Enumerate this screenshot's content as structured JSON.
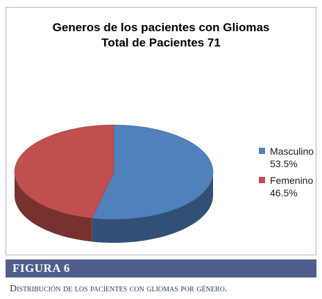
{
  "chart_data": {
    "type": "pie",
    "title": "Generos de los pacientes con Gliomas",
    "subtitle": "Total de Pacientes 71",
    "legend_position": "right",
    "slices": [
      {
        "label": "Masculino",
        "value": 53.5,
        "value_label": "53.5%",
        "color": "#4f81bd"
      },
      {
        "label": "Femenino",
        "value": 46.5,
        "value_label": "46.5%",
        "color": "#c0504d"
      }
    ]
  },
  "figure": {
    "label": "FIGURA 6",
    "caption": "Distribución de los pacientes con gliomas por género."
  }
}
